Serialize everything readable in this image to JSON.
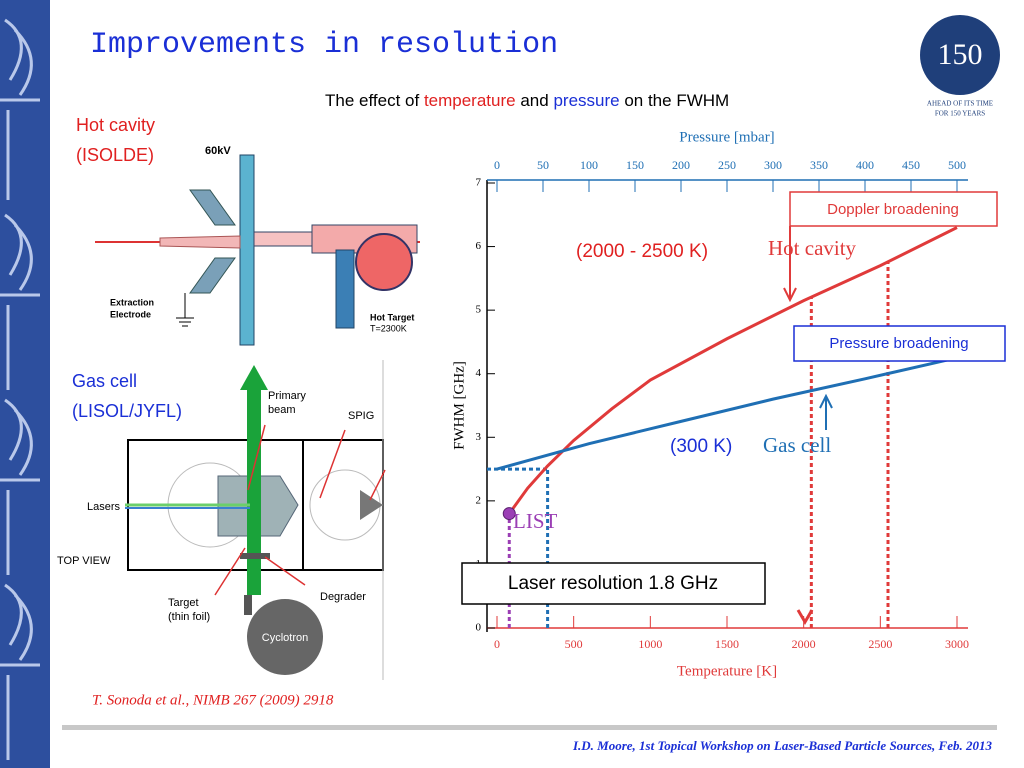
{
  "title": "Improvements in resolution",
  "subtitle": [
    "The effect of",
    "temperature",
    "and",
    "pressure",
    "on the FWHM"
  ],
  "logo": {
    "number": "150",
    "tagline": [
      "AHEAD OF ITS TIME",
      "FOR 150 YEARS"
    ]
  },
  "hot_cavity": {
    "label": [
      "Hot cavity",
      "(ISOLDE)"
    ],
    "diagram_labels": [
      "60kV",
      "Extraction",
      "Electrode",
      "Hot Target",
      "T=2300K"
    ]
  },
  "gas_cell": {
    "label": [
      "Gas cell",
      "(LISOL/JYFL)"
    ],
    "diagram_labels": [
      "Primary",
      "beam",
      "SPIG",
      "Lasers",
      "TOP VIEW",
      "Target",
      "(thin foil)",
      "Degrader",
      "Cyclotron"
    ]
  },
  "citation": "T. Sonoda et al., NIMB 267 (2009) 2918",
  "footer": "I.D. Moore, 1st Topical Workshop on Laser-Based Particle Sources, Feb. 2013",
  "chart_data": {
    "type": "line",
    "x_label": "Temperature [K]",
    "x2_label": "Pressure [mbar]",
    "y_label": "FWHM [GHz]",
    "xlim": [
      0,
      3000
    ],
    "xticks": [
      0,
      500,
      1000,
      1500,
      2000,
      2500,
      3000
    ],
    "x2lim": [
      0,
      500
    ],
    "x2ticks": [
      0,
      50,
      100,
      150,
      200,
      250,
      300,
      350,
      400,
      450,
      500
    ],
    "ylim": [
      0,
      7
    ],
    "yticks": [
      0,
      1,
      2,
      3,
      4,
      5,
      6,
      7
    ],
    "series": [
      {
        "name": "Hot cavity",
        "color": "#e03a3a",
        "x": [
          80,
          200,
          330,
          500,
          750,
          1000,
          1500,
          2000,
          2500,
          3000
        ],
        "values": [
          1.8,
          2.2,
          2.55,
          2.95,
          3.45,
          3.9,
          4.55,
          5.15,
          5.7,
          6.3
        ]
      },
      {
        "name": "Gas cell",
        "color": "#1f6fb4",
        "axis": "x2",
        "x": [
          0,
          100,
          200,
          300,
          400,
          500
        ],
        "values": [
          2.5,
          2.9,
          3.25,
          3.6,
          3.92,
          4.25
        ]
      }
    ],
    "reference_lines": [
      {
        "x": 80,
        "y": 1.8,
        "color": "#9b3fb5"
      },
      {
        "x": 330,
        "y": 2.5,
        "color": "#1f6fb4"
      },
      {
        "x": 2050,
        "y": 5.2,
        "color": "#e03a3a"
      },
      {
        "x": 2550,
        "y": 5.75,
        "color": "#e03a3a"
      }
    ],
    "annotations": {
      "doppler": "Doppler broadening",
      "pressure": "Pressure broadening",
      "hot_range": "(2000 - 2500 K)",
      "gas_temp": "(300 K)",
      "laser": "Laser resolution 1.8 GHz",
      "list": "LIST"
    }
  }
}
